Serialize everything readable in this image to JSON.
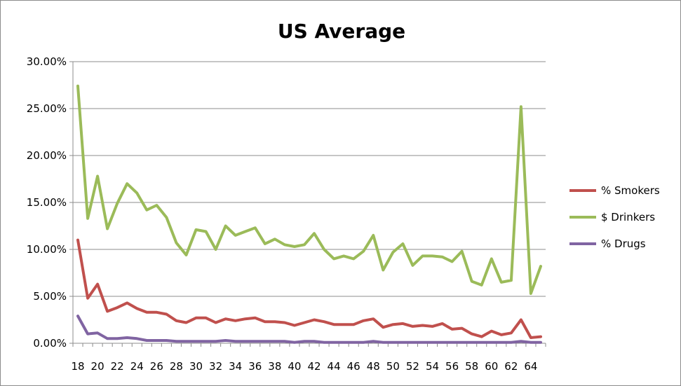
{
  "chart_data": {
    "type": "line",
    "title": "US Average",
    "xlabel": "",
    "ylabel": "",
    "x": [
      18,
      19,
      20,
      21,
      22,
      23,
      24,
      25,
      26,
      27,
      28,
      29,
      30,
      31,
      32,
      33,
      34,
      35,
      36,
      37,
      38,
      39,
      40,
      41,
      42,
      43,
      44,
      45,
      46,
      47,
      48,
      49,
      50,
      51,
      52,
      53,
      54,
      55,
      56,
      57,
      58,
      59,
      60,
      61,
      62,
      63,
      64,
      65
    ],
    "x_tick_labels": [
      "18",
      "20",
      "22",
      "24",
      "26",
      "28",
      "30",
      "32",
      "34",
      "36",
      "38",
      "40",
      "42",
      "44",
      "46",
      "48",
      "50",
      "52",
      "54",
      "56",
      "58",
      "60",
      "62",
      "64"
    ],
    "y_tick_labels": [
      "0.00%",
      "5.00%",
      "10.00%",
      "15.00%",
      "20.00%",
      "25.00%",
      "30.00%"
    ],
    "ylim": [
      0,
      0.3
    ],
    "y_ticks": [
      0,
      0.05,
      0.1,
      0.15,
      0.2,
      0.25,
      0.3
    ],
    "grid": "horizontal",
    "legend_position": "right",
    "series": [
      {
        "name": "% Smokers",
        "color": "#c0504d",
        "values": [
          0.11,
          0.048,
          0.063,
          0.034,
          0.038,
          0.043,
          0.037,
          0.033,
          0.033,
          0.031,
          0.024,
          0.022,
          0.027,
          0.027,
          0.022,
          0.026,
          0.024,
          0.026,
          0.027,
          0.023,
          0.023,
          0.022,
          0.019,
          0.022,
          0.025,
          0.023,
          0.02,
          0.02,
          0.02,
          0.024,
          0.026,
          0.017,
          0.02,
          0.021,
          0.018,
          0.019,
          0.018,
          0.021,
          0.015,
          0.016,
          0.01,
          0.007,
          0.013,
          0.009,
          0.011,
          0.025,
          0.006,
          0.007
        ]
      },
      {
        "name": "$ Drinkers",
        "color": "#9bbb59",
        "values": [
          0.274,
          0.133,
          0.178,
          0.122,
          0.149,
          0.17,
          0.16,
          0.142,
          0.147,
          0.134,
          0.107,
          0.094,
          0.121,
          0.119,
          0.1,
          0.125,
          0.115,
          0.119,
          0.123,
          0.106,
          0.111,
          0.105,
          0.103,
          0.105,
          0.117,
          0.1,
          0.09,
          0.093,
          0.09,
          0.098,
          0.115,
          0.078,
          0.097,
          0.106,
          0.083,
          0.093,
          0.093,
          0.092,
          0.087,
          0.098,
          0.066,
          0.062,
          0.09,
          0.065,
          0.067,
          0.252,
          0.053,
          0.082
        ]
      },
      {
        "name": "% Drugs",
        "color": "#8064a2",
        "values": [
          0.029,
          0.01,
          0.011,
          0.005,
          0.005,
          0.006,
          0.005,
          0.003,
          0.003,
          0.003,
          0.002,
          0.002,
          0.002,
          0.002,
          0.002,
          0.003,
          0.002,
          0.002,
          0.002,
          0.002,
          0.002,
          0.002,
          0.001,
          0.002,
          0.002,
          0.001,
          0.001,
          0.001,
          0.001,
          0.001,
          0.002,
          0.001,
          0.001,
          0.001,
          0.001,
          0.001,
          0.001,
          0.001,
          0.001,
          0.001,
          0.001,
          0.001,
          0.001,
          0.001,
          0.001,
          0.002,
          0.001,
          0.001
        ]
      }
    ]
  }
}
